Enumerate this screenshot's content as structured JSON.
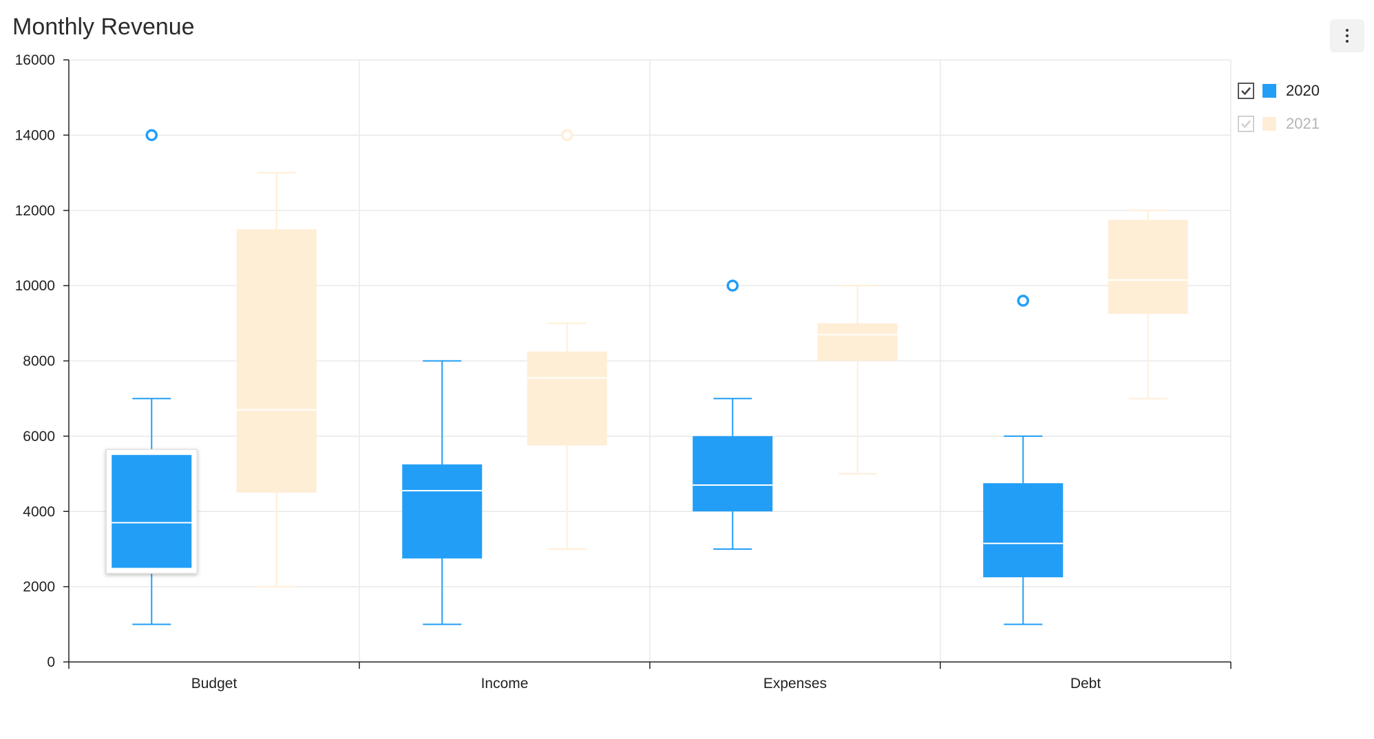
{
  "colors": {
    "series2020": "#229ef6",
    "series2021": "#ffeed6",
    "grid": "#e8e8e8",
    "axis": "#222222"
  },
  "chart_data": {
    "type": "box",
    "title": "Monthly Revenue",
    "categories": [
      "Budget",
      "Income",
      "Expenses",
      "Debt"
    ],
    "ylim": [
      0,
      16000
    ],
    "yticks": [
      "0",
      "2000",
      "4000",
      "6000",
      "8000",
      "10000",
      "12000",
      "14000",
      "16000"
    ],
    "grid": true,
    "legend_position": "top-right",
    "series": [
      {
        "name": "2020",
        "boxes": [
          {
            "min": 1000,
            "q1": 2500,
            "median": 3700,
            "q3": 5500,
            "max": 7000,
            "outliers": [
              14000
            ]
          },
          {
            "min": 1000,
            "q1": 2750,
            "median": 4550,
            "q3": 5250,
            "max": 8000,
            "outliers": []
          },
          {
            "min": 3000,
            "q1": 4000,
            "median": 4700,
            "q3": 6000,
            "max": 7000,
            "outliers": [
              10000
            ]
          },
          {
            "min": 1000,
            "q1": 2250,
            "median": 3150,
            "q3": 4750,
            "max": 6000,
            "outliers": [
              9600
            ]
          }
        ]
      },
      {
        "name": "2021",
        "boxes": [
          {
            "min": 2000,
            "q1": 4500,
            "median": 6700,
            "q3": 11500,
            "max": 13000,
            "outliers": []
          },
          {
            "min": 3000,
            "q1": 5750,
            "median": 7550,
            "q3": 8250,
            "max": 9000,
            "outliers": [
              14000
            ]
          },
          {
            "min": 5000,
            "q1": 8000,
            "median": 8700,
            "q3": 9000,
            "max": 10000,
            "outliers": []
          },
          {
            "min": 7000,
            "q1": 9250,
            "median": 10150,
            "q3": 11750,
            "max": 12000,
            "outliers": []
          }
        ]
      }
    ]
  },
  "legend": [
    {
      "label": "2020",
      "checked": true,
      "dimmed": false
    },
    {
      "label": "2021",
      "checked": true,
      "dimmed": true
    }
  ],
  "toolbar": {
    "menu_icon": "more-vertical-icon"
  }
}
